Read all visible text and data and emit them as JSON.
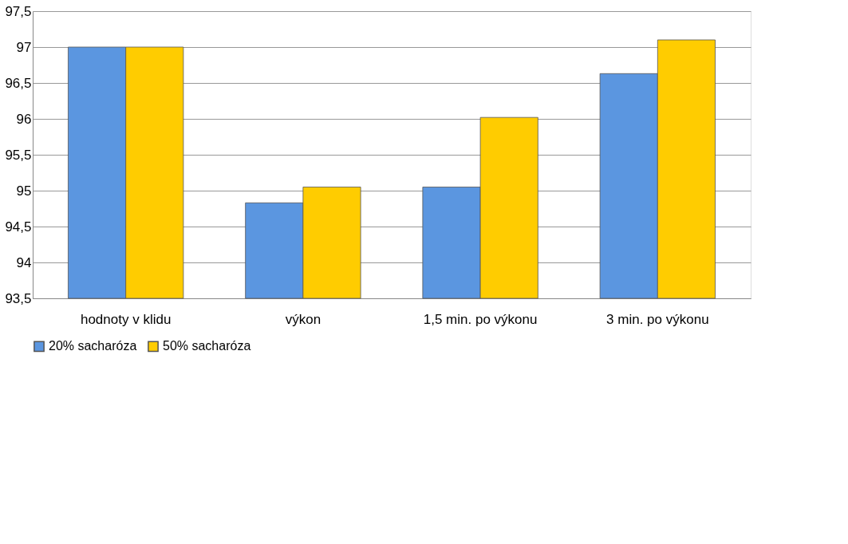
{
  "chart_data": {
    "type": "bar",
    "categories": [
      "hodnoty v klidu",
      "výkon",
      "1,5 min. po výkonu",
      "3 min. po výkonu"
    ],
    "series": [
      {
        "name": "20% sacharóza",
        "color": "#5b96e0",
        "values": [
          97.0,
          94.83,
          95.05,
          96.63
        ]
      },
      {
        "name": "50% sacharóza",
        "color": "#ffcc00",
        "values": [
          97.0,
          95.05,
          96.02,
          97.1
        ]
      }
    ],
    "ylim": [
      93.5,
      97.5
    ],
    "yticks": [
      {
        "value": 93.5,
        "label": "93,5"
      },
      94,
      {
        "value": 94.5,
        "label": "94,5"
      },
      95,
      {
        "value": 95.5,
        "label": "95,5"
      },
      96,
      {
        "value": 96.5,
        "label": "96,5"
      },
      97,
      {
        "value": 97.5,
        "label": "97,5"
      }
    ],
    "grid": "y",
    "legend": "bottom"
  }
}
